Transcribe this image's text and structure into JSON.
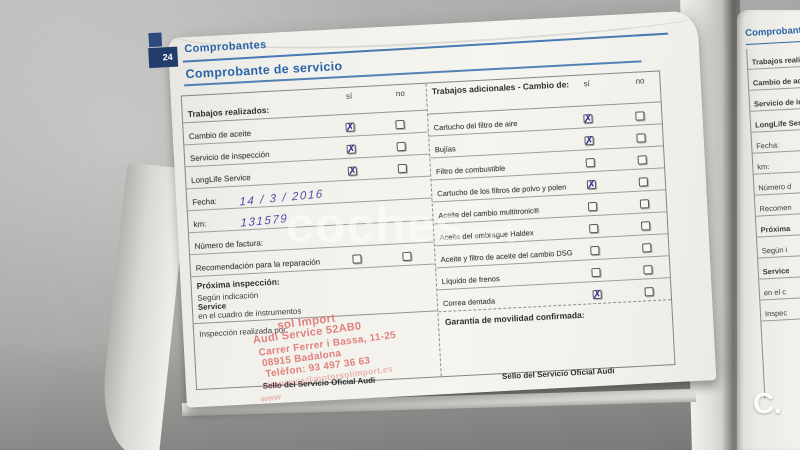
{
  "page": {
    "tab_number": "24",
    "section_title": "Comprobantes",
    "form_title": "Comprobante de servicio"
  },
  "left_table": {
    "header": {
      "label": "Trabajos realizados:",
      "col_si": "sí",
      "col_no": "no"
    },
    "rows": [
      {
        "label": "Cambio de aceite",
        "si": true,
        "no": false
      },
      {
        "label": "Servicio de inspección",
        "si": true,
        "no": false
      },
      {
        "label": "LongLife Service",
        "si": true,
        "no": false
      },
      {
        "label": "Fecha:",
        "value": "14 / 3 / 2016"
      },
      {
        "label": "km:",
        "value": "131579"
      },
      {
        "label": "Número de factura:",
        "value": ""
      },
      {
        "label": "Recomendación para la reparación",
        "si": false,
        "no": false
      }
    ],
    "next_inspection": {
      "title": "Próxima inspección:",
      "line1": "Según indicación",
      "line2": "Service",
      "line3": "en el cuadro de instrumentos"
    },
    "inspection": {
      "label": "Inspección realizada por:",
      "seal_caption": "Sello del Servicio Oficial Audi"
    }
  },
  "stamp": {
    "lines": [
      "sol Import",
      "Audi Service 52AB0",
      "Carrer Ferrer i Bassa, 11-25",
      "08915 Badalona",
      "Telèfon: 93 497 36 63",
      "citaprevia@motorsolimport.es",
      "www"
    ]
  },
  "right_table": {
    "header": {
      "label": "Trabajos adicionales - Cambio de:",
      "col_si": "sí",
      "col_no": "no"
    },
    "rows": [
      {
        "label": "Cartucho del filtro de aire",
        "si": true,
        "no": false
      },
      {
        "label": "Bujías",
        "si": true,
        "no": false
      },
      {
        "label": "Filtro de combustible",
        "si": false,
        "no": false
      },
      {
        "label": "Cartucho de los filtros de polvo y polen",
        "si": true,
        "no": false
      },
      {
        "label": "Aceite del cambio multitronic®",
        "si": false,
        "no": false
      },
      {
        "label": "Aceite del embrague Haldex",
        "si": false,
        "no": false
      },
      {
        "label": "Aceite y filtro de aceite del cambio DSG",
        "si": false,
        "no": false
      },
      {
        "label": "Líquido de frenos",
        "si": false,
        "no": false
      },
      {
        "label": "Correa dentada",
        "si": true,
        "no": false
      }
    ],
    "warranty": {
      "label": "Garantía de movilidad confirmada:",
      "seal_caption": "Sello del Servicio Oficial Audi"
    }
  },
  "next_page": {
    "section_title": "Comprobante",
    "labels": [
      {
        "text": "Trabajos reali",
        "bold": true
      },
      {
        "text": "Cambio de acei",
        "bold": true
      },
      {
        "text": "Servicio de ins",
        "bold": true
      },
      {
        "text": "LongLife Serv",
        "bold": true
      },
      {
        "text": "Fecha:",
        "bold": false
      },
      {
        "text": "km:",
        "bold": false
      },
      {
        "text": "Número d",
        "bold": false
      },
      {
        "text": "Recomen",
        "bold": false
      },
      {
        "text": "Próxima",
        "bold": true
      },
      {
        "text": "Según i",
        "bold": false
      },
      {
        "text": "Service",
        "bold": true
      },
      {
        "text": "en el c",
        "bold": false
      },
      {
        "text": "Inspec",
        "bold": false
      }
    ]
  },
  "watermark": {
    "main": "coches",
    "suffix": ".net",
    "corner": "C."
  },
  "colors": {
    "heading_blue": "#2a64a8",
    "tab_navy": "#223d6b",
    "ink_blue": "#4d4dae",
    "stamp_red": "#e0716e",
    "check_blue": "#32329b",
    "background_gray": "#a3a3a1",
    "page_white": "#f2f1ec"
  }
}
